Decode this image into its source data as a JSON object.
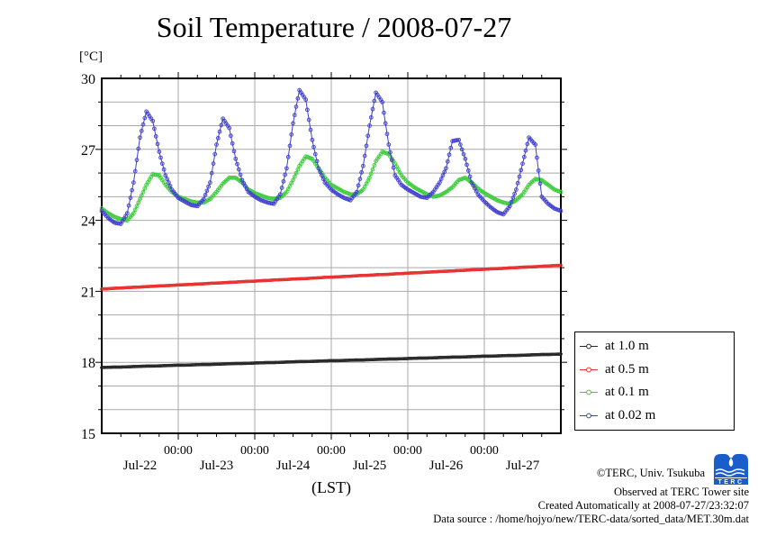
{
  "title": "Soil Temperature / 2008-07-27",
  "axes": {
    "y_unit_label": "[°C]",
    "x_axis_label": "(LST)",
    "y_tick_values": [
      30,
      27,
      24,
      21,
      18,
      15
    ],
    "y_tick_labels": [
      "30",
      "27",
      "24",
      "21",
      "18",
      "15"
    ],
    "x_midnight_labels": [
      "00:00",
      "00:00",
      "00:00",
      "00:00",
      "00:00"
    ],
    "x_day_labels": [
      "Jul-22",
      "Jul-23",
      "Jul-24",
      "Jul-25",
      "Jul-26",
      "Jul-27"
    ]
  },
  "legend": {
    "items": [
      {
        "label": "at 1.0 m",
        "color": "#282828"
      },
      {
        "label": "at 0.5 m",
        "color": "#e83030"
      },
      {
        "label": "at 0.1 m",
        "color": "#3ccc3c"
      },
      {
        "label": "at 0.02 m",
        "color": "#4040cf"
      }
    ]
  },
  "footer": {
    "copyright": "©TERC, Univ. Tsukuba",
    "observed": "Observed at TERC Tower site",
    "created": "Created Automatically at 2008-07-27/23:32:07",
    "datasource": "Data source : /home/hojyo/new/TERC-data/sorted_data/MET.30m.dat",
    "logo_text": "TERC",
    "logo_color": "#1a5ecc"
  },
  "chart_data": {
    "type": "line",
    "title": "Soil Temperature / 2008-07-27",
    "xlabel": "(LST)",
    "ylabel": "[°C]",
    "ylim": [
      15,
      30
    ],
    "x_start": "2008-07-22 00:00 LST",
    "x_end": "2008-07-28 00:00 LST",
    "x_step_hours": 2,
    "grid": true,
    "gridline_color": "#a9a9a9",
    "frame_color": "#000000",
    "legend_position": "outside-right-bottom",
    "marker": "circle",
    "series": [
      {
        "name": "at 1.0 m",
        "depth_m": 1.0,
        "color": "#282828",
        "values": [
          17.78,
          17.79,
          17.8,
          17.8,
          17.81,
          17.82,
          17.83,
          17.84,
          17.84,
          17.85,
          17.86,
          17.87,
          17.88,
          17.88,
          17.89,
          17.9,
          17.91,
          17.91,
          17.92,
          17.93,
          17.94,
          17.95,
          17.95,
          17.96,
          17.97,
          17.98,
          17.99,
          17.99,
          18.0,
          18.01,
          18.02,
          18.03,
          18.03,
          18.04,
          18.05,
          18.06,
          18.07,
          18.07,
          18.08,
          18.09,
          18.1,
          18.1,
          18.11,
          18.12,
          18.13,
          18.14,
          18.14,
          18.15,
          18.16,
          18.17,
          18.18,
          18.18,
          18.19,
          18.2,
          18.21,
          18.22,
          18.22,
          18.23,
          18.24,
          18.25,
          18.26,
          18.26,
          18.27,
          18.28,
          18.29,
          18.29,
          18.3,
          18.31,
          18.32,
          18.33,
          18.33,
          18.34,
          18.35
        ]
      },
      {
        "name": "at 0.5 m",
        "depth_m": 0.5,
        "color": "#e83030",
        "values": [
          21.1,
          21.11,
          21.13,
          21.14,
          21.16,
          21.17,
          21.18,
          21.2,
          21.21,
          21.23,
          21.24,
          21.25,
          21.27,
          21.28,
          21.29,
          21.31,
          21.32,
          21.34,
          21.35,
          21.36,
          21.38,
          21.39,
          21.41,
          21.42,
          21.43,
          21.45,
          21.46,
          21.48,
          21.49,
          21.5,
          21.52,
          21.53,
          21.54,
          21.56,
          21.57,
          21.59,
          21.6,
          21.61,
          21.63,
          21.64,
          21.66,
          21.67,
          21.68,
          21.7,
          21.71,
          21.72,
          21.74,
          21.75,
          21.77,
          21.78,
          21.79,
          21.81,
          21.82,
          21.84,
          21.85,
          21.86,
          21.88,
          21.89,
          21.91,
          21.92,
          21.93,
          21.95,
          21.96,
          21.97,
          21.99,
          22.0,
          22.02,
          22.03,
          22.04,
          22.06,
          22.07,
          22.09,
          22.1
        ]
      },
      {
        "name": "at 0.1 m",
        "depth_m": 0.1,
        "color": "#3ccc3c",
        "values": [
          24.5,
          24.3,
          24.15,
          24.05,
          24.0,
          24.3,
          24.9,
          25.5,
          25.95,
          25.9,
          25.5,
          25.2,
          25.0,
          24.9,
          24.8,
          24.75,
          24.75,
          24.9,
          25.2,
          25.55,
          25.8,
          25.8,
          25.6,
          25.3,
          25.15,
          25.05,
          24.95,
          24.9,
          24.95,
          25.2,
          25.7,
          26.3,
          26.7,
          26.6,
          26.2,
          25.8,
          25.5,
          25.35,
          25.2,
          25.1,
          25.1,
          25.3,
          25.8,
          26.5,
          26.9,
          26.8,
          26.4,
          25.9,
          25.6,
          25.4,
          25.25,
          25.1,
          25.0,
          25.05,
          25.2,
          25.4,
          25.7,
          25.8,
          25.6,
          25.35,
          25.15,
          25.0,
          24.85,
          24.75,
          24.7,
          24.85,
          25.1,
          25.5,
          25.75,
          25.7,
          25.5,
          25.3,
          25.2
        ]
      },
      {
        "name": "at 0.02 m",
        "depth_m": 0.02,
        "color": "#4040cf",
        "values": [
          24.4,
          24.1,
          23.9,
          23.85,
          24.3,
          25.6,
          27.5,
          28.6,
          28.2,
          26.9,
          25.9,
          25.3,
          24.95,
          24.8,
          24.65,
          24.6,
          24.9,
          25.6,
          27.2,
          28.3,
          27.9,
          26.6,
          25.7,
          25.2,
          25.0,
          24.85,
          24.75,
          24.7,
          25.1,
          26.2,
          28.1,
          29.5,
          29.1,
          27.4,
          26.2,
          25.6,
          25.3,
          25.1,
          24.95,
          24.85,
          25.2,
          26.3,
          28.0,
          29.4,
          29.0,
          27.2,
          25.9,
          25.5,
          25.3,
          25.15,
          25.0,
          24.95,
          25.2,
          25.6,
          26.2,
          27.35,
          27.4,
          26.6,
          25.6,
          25.1,
          24.8,
          24.55,
          24.35,
          24.25,
          24.6,
          25.3,
          26.4,
          27.5,
          27.2,
          25.0,
          24.7,
          24.5,
          24.4
        ]
      }
    ]
  }
}
